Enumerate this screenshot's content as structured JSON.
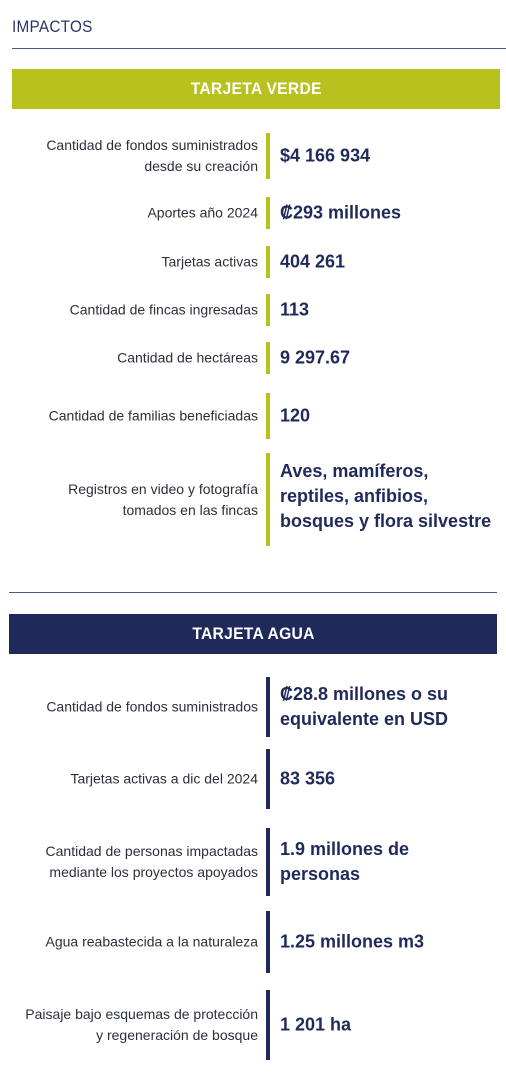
{
  "section": {
    "title": "IMPACTOS"
  },
  "verde": {
    "title": "TARJETA VERDE",
    "color": "#b9c11f",
    "rows": [
      {
        "label": "Cantidad de fondos suministrados desde su creación",
        "value": "$4 166 934"
      },
      {
        "label": "Aportes año 2024",
        "value": "₡293 millones"
      },
      {
        "label": "Tarjetas activas",
        "value": "404 261"
      },
      {
        "label": "Cantidad de fincas ingresadas",
        "value": "113"
      },
      {
        "label": "Cantidad de hectáreas",
        "value": "9 297.67"
      },
      {
        "label": "Cantidad de familias beneficiadas",
        "value": "120"
      },
      {
        "label": "Registros en video y fotografía tomados en las fincas",
        "value": "Aves, mamíferos, reptiles, anfibios, bosques y flora silvestre"
      }
    ]
  },
  "agua": {
    "title": "TARJETA AGUA",
    "color": "#1f2a5a",
    "rows": [
      {
        "label": "Cantidad de fondos suministrados",
        "value": "₡28.8 millones o su equivalente en USD"
      },
      {
        "label": "Tarjetas activas a dic del 2024",
        "value": "83 356"
      },
      {
        "label": "Cantidad de personas impactadas mediante los proyectos apoyados",
        "value": "1.9 millones de personas"
      },
      {
        "label": "Agua reabastecida a la naturaleza",
        "value": "1.25 millones m3"
      },
      {
        "label": "Paisaje bajo esquemas de protección y regeneración de bosque",
        "value": "1 201 ha"
      }
    ]
  }
}
